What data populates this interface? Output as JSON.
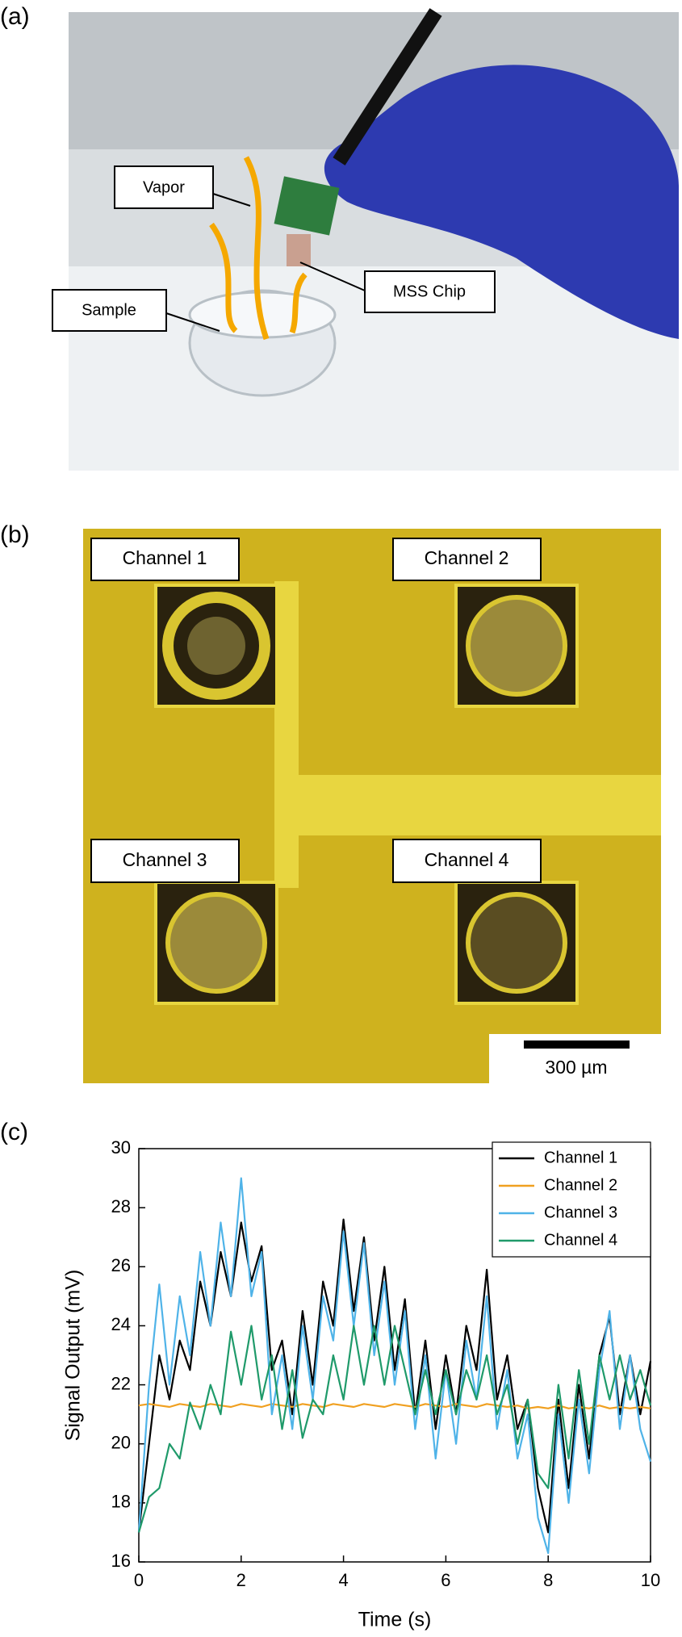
{
  "panels": {
    "a": {
      "label": "(a)",
      "annotations": [
        "Vapor",
        "Sample",
        "MSS Chip"
      ]
    },
    "b": {
      "label": "(b)",
      "channels": [
        "Channel 1",
        "Channel 2",
        "Channel 3",
        "Channel 4"
      ],
      "scale_bar": "300 µm"
    },
    "c": {
      "label": "(c)"
    }
  },
  "chart_data": {
    "type": "line",
    "x_label": "Time (s)",
    "y_label": "Signal Output (mV)",
    "xlim": [
      0,
      10
    ],
    "xticks": [
      0,
      2,
      4,
      6,
      8,
      10
    ],
    "ylim": [
      16,
      30
    ],
    "yticks": [
      16,
      18,
      20,
      22,
      24,
      26,
      28,
      30
    ],
    "legend": "top-right",
    "x": [
      0,
      0.2,
      0.4,
      0.6,
      0.8,
      1.0,
      1.2,
      1.4,
      1.6,
      1.8,
      2.0,
      2.2,
      2.4,
      2.6,
      2.8,
      3.0,
      3.2,
      3.4,
      3.6,
      3.8,
      4.0,
      4.2,
      4.4,
      4.6,
      4.8,
      5.0,
      5.2,
      5.4,
      5.6,
      5.8,
      6.0,
      6.2,
      6.4,
      6.6,
      6.8,
      7.0,
      7.2,
      7.4,
      7.6,
      7.8,
      8.0,
      8.2,
      8.4,
      8.6,
      8.8,
      9.0,
      9.2,
      9.4,
      9.6,
      9.8,
      10.0
    ],
    "series": [
      {
        "name": "Channel 1",
        "color": "#000000",
        "values": [
          17.0,
          20.0,
          23.0,
          21.5,
          23.5,
          22.5,
          25.5,
          24.0,
          26.5,
          25.0,
          27.5,
          25.5,
          26.7,
          22.5,
          23.5,
          21.0,
          24.5,
          22.0,
          25.5,
          24.0,
          27.6,
          24.5,
          27.0,
          23.5,
          26.0,
          22.5,
          24.9,
          21.0,
          23.5,
          20.5,
          23.0,
          21.0,
          24.0,
          22.5,
          25.9,
          21.5,
          23.0,
          20.5,
          21.5,
          18.5,
          17.0,
          21.5,
          18.5,
          22.0,
          19.5,
          23.0,
          24.3,
          21.0,
          23.0,
          21.0,
          22.8
        ]
      },
      {
        "name": "Channel 2",
        "color": "#f0a020",
        "values": [
          21.3,
          21.35,
          21.3,
          21.25,
          21.35,
          21.3,
          21.25,
          21.35,
          21.3,
          21.25,
          21.35,
          21.3,
          21.25,
          21.35,
          21.3,
          21.25,
          21.35,
          21.3,
          21.25,
          21.35,
          21.3,
          21.25,
          21.35,
          21.3,
          21.25,
          21.35,
          21.3,
          21.25,
          21.35,
          21.3,
          21.25,
          21.35,
          21.3,
          21.25,
          21.35,
          21.3,
          21.25,
          21.3,
          21.2,
          21.25,
          21.2,
          21.3,
          21.2,
          21.25,
          21.2,
          21.3,
          21.2,
          21.25,
          21.2,
          21.25,
          21.2
        ]
      },
      {
        "name": "Channel 3",
        "color": "#4fb3e8",
        "values": [
          17.0,
          22.0,
          25.4,
          22.0,
          25.0,
          23.0,
          26.5,
          24.0,
          27.5,
          25.0,
          29.0,
          25.0,
          26.5,
          21.0,
          23.0,
          20.5,
          24.0,
          21.5,
          25.0,
          23.5,
          27.2,
          24.0,
          26.8,
          23.0,
          25.5,
          22.0,
          24.5,
          20.5,
          23.0,
          19.5,
          22.5,
          20.0,
          23.5,
          21.5,
          25.0,
          20.5,
          22.5,
          19.5,
          21.0,
          17.5,
          16.3,
          21.0,
          18.0,
          21.5,
          19.0,
          22.5,
          24.5,
          20.5,
          23.0,
          20.5,
          19.4
        ]
      },
      {
        "name": "Channel 4",
        "color": "#1f9a6a",
        "values": [
          17.0,
          18.2,
          18.5,
          20.0,
          19.5,
          21.4,
          20.5,
          22.0,
          21.0,
          23.8,
          22.0,
          24.0,
          21.5,
          23.0,
          20.5,
          22.5,
          20.2,
          21.5,
          21.0,
          23.0,
          21.5,
          24.0,
          22.0,
          24.0,
          22.0,
          24.0,
          22.5,
          21.0,
          22.5,
          21.0,
          22.5,
          21.0,
          22.5,
          21.5,
          23.0,
          21.0,
          22.0,
          20.0,
          21.5,
          19.0,
          18.5,
          22.0,
          19.5,
          22.5,
          20.0,
          23.0,
          21.5,
          23.0,
          21.5,
          22.5,
          21.3
        ]
      }
    ]
  }
}
